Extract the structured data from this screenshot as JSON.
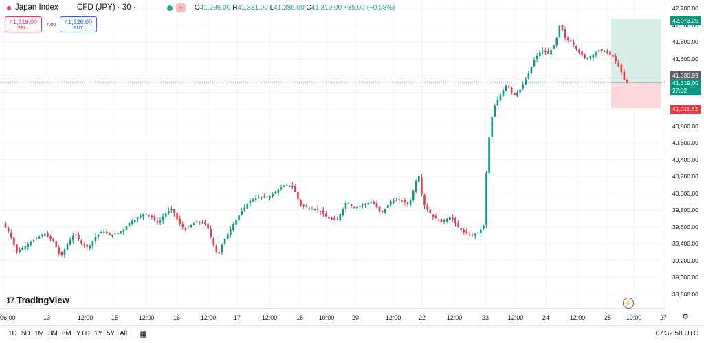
{
  "header": {
    "symbol": "Japan Index",
    "interval": "CFD (JPY) · 30 ·",
    "ohlc": {
      "o_label": "O",
      "o": "41,286.00",
      "h_label": "H",
      "h": "41,331.00",
      "l_label": "L",
      "l": "41,286.00",
      "c_label": "C",
      "c": "41,319.00",
      "change": "+35.00 (+0.08%)"
    },
    "wave_icon": "≈"
  },
  "order": {
    "sell_price": "41,319.00",
    "sell_label": "SELL",
    "spread": "7.00",
    "buy_price": "41,326.00",
    "buy_label": "BUY"
  },
  "price_axis": {
    "ticks": [
      "42,200.00",
      "42,000.00",
      "41,800.00",
      "41,600.00",
      "41,400.00",
      "41,200.00",
      "41,000.00",
      "40,800.00",
      "40,600.00",
      "40,400.00",
      "40,200.00",
      "40,000.00",
      "39,800.00",
      "39,600.00",
      "39,400.00",
      "39,200.00",
      "39,000.00",
      "38,800.00"
    ],
    "tp": "42,073.25",
    "ask": "41,330.99",
    "last": "41,319.00",
    "countdown": "27:02",
    "sl": "41,011.62"
  },
  "time_axis": {
    "ticks": [
      "06:00",
      "13",
      "12:00",
      "15",
      "12:00",
      "16",
      "12:00",
      "17",
      "12:00",
      "18",
      "10:00",
      "20",
      "12:00",
      "22",
      "12:00",
      "23",
      "12:00",
      "24",
      "12:00",
      "25",
      "10:00",
      "27"
    ]
  },
  "bottom": {
    "ranges": [
      "1D",
      "5D",
      "1M",
      "3M",
      "6M",
      "YTD",
      "1Y",
      "5Y",
      "All"
    ],
    "clock": "07:32:58 UTC"
  },
  "branding": {
    "logo_mark": "17",
    "logo_text": "TradingView"
  },
  "colors": {
    "up": "#089981",
    "down": "#f23645",
    "grid": "#f0f3fa",
    "tp_zone": "#d6efe9",
    "sl_zone": "#fcd9dc"
  },
  "chart_data": {
    "type": "candlestick",
    "y_range": [
      38800,
      42300
    ],
    "x_count": 230,
    "close_path": [
      [
        0,
        39640
      ],
      [
        6,
        39520
      ],
      [
        12,
        39300
      ],
      [
        20,
        39380
      ],
      [
        28,
        39450
      ],
      [
        36,
        39520
      ],
      [
        44,
        39420
      ],
      [
        50,
        39240
      ],
      [
        56,
        39400
      ],
      [
        62,
        39520
      ],
      [
        68,
        39400
      ],
      [
        74,
        39350
      ],
      [
        80,
        39480
      ],
      [
        86,
        39550
      ],
      [
        92,
        39500
      ],
      [
        98,
        39520
      ],
      [
        104,
        39560
      ],
      [
        110,
        39660
      ],
      [
        116,
        39700
      ],
      [
        122,
        39760
      ],
      [
        128,
        39720
      ],
      [
        134,
        39640
      ],
      [
        140,
        39750
      ],
      [
        146,
        39820
      ],
      [
        152,
        39640
      ],
      [
        158,
        39560
      ],
      [
        164,
        39640
      ],
      [
        170,
        39660
      ],
      [
        176,
        39620
      ],
      [
        182,
        39380
      ],
      [
        186,
        39250
      ],
      [
        190,
        39420
      ],
      [
        196,
        39560
      ],
      [
        202,
        39700
      ],
      [
        208,
        39820
      ],
      [
        214,
        39920
      ],
      [
        220,
        39950
      ],
      [
        228,
        39960
      ]
    ],
    "note_segment_2": [
      [
        0,
        39960
      ],
      [
        8,
        40050
      ],
      [
        14,
        40100
      ],
      [
        20,
        40080
      ],
      [
        26,
        39860
      ],
      [
        34,
        39820
      ],
      [
        42,
        39800
      ],
      [
        50,
        39700
      ],
      [
        58,
        39680
      ],
      [
        66,
        39900
      ],
      [
        72,
        39820
      ],
      [
        80,
        39860
      ],
      [
        88,
        39900
      ],
      [
        96,
        39760
      ],
      [
        104,
        39900
      ],
      [
        112,
        39920
      ],
      [
        120,
        39860
      ],
      [
        128,
        40240
      ],
      [
        132,
        39880
      ],
      [
        140,
        39720
      ],
      [
        148,
        39660
      ],
      [
        156,
        39720
      ],
      [
        164,
        39560
      ],
      [
        172,
        39500
      ]
    ],
    "note_segment_3": [
      [
        0,
        39500
      ],
      [
        6,
        39540
      ],
      [
        10,
        39620
      ],
      [
        12,
        40200
      ],
      [
        14,
        40600
      ],
      [
        18,
        41000
      ],
      [
        24,
        41160
      ],
      [
        30,
        41300
      ],
      [
        36,
        41160
      ],
      [
        42,
        41240
      ],
      [
        48,
        41400
      ],
      [
        54,
        41600
      ],
      [
        60,
        41700
      ],
      [
        66,
        41660
      ],
      [
        72,
        41780
      ],
      [
        76,
        42020
      ],
      [
        80,
        41850
      ],
      [
        86,
        41800
      ],
      [
        92,
        41680
      ],
      [
        98,
        41600
      ],
      [
        104,
        41640
      ],
      [
        110,
        41700
      ],
      [
        116,
        41680
      ],
      [
        122,
        41620
      ],
      [
        128,
        41480
      ],
      [
        132,
        41330
      ],
      [
        134,
        41319
      ]
    ],
    "tp_level": 42073.25,
    "ask_level": 41330.99,
    "last_level": 41319.0,
    "sl_level": 41011.62
  }
}
